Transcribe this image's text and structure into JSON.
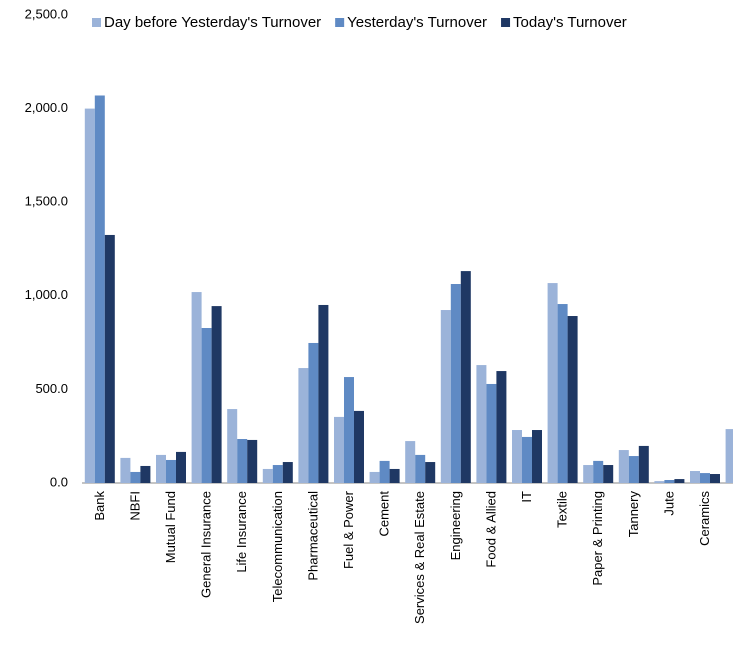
{
  "chart_data": {
    "type": "bar",
    "categories": [
      "Bank",
      "NBFI",
      "Mutual Fund",
      "General Insurance",
      "Life Insurance",
      "Telecommunication",
      "Pharmaceutical",
      "Fuel & Power",
      "Cement",
      "Services & Real Estate",
      "Engineering",
      "Food & Allied",
      "IT",
      "Textile",
      "Paper & Printing",
      "Tannery",
      "Jute",
      "Ceramics",
      null
    ],
    "series": [
      {
        "name": "Day before Yesterday's Turnover",
        "color": "#9bb3d9",
        "values": [
          2000,
          134,
          150,
          1020,
          395,
          75,
          614,
          353,
          59,
          224,
          924,
          630,
          283,
          1068,
          96,
          176,
          10,
          64,
          288
        ]
      },
      {
        "name": "Yesterday's Turnover",
        "color": "#5f8ac4",
        "values": [
          2070,
          59,
          123,
          828,
          235,
          96,
          748,
          566,
          118,
          150,
          1063,
          529,
          246,
          956,
          118,
          144,
          16,
          53,
          null
        ]
      },
      {
        "name": "Today's Turnover",
        "color": "#1f3864",
        "values": [
          1325,
          91,
          166,
          945,
          230,
          112,
          951,
          385,
          75,
          112,
          1132,
          598,
          283,
          892,
          96,
          198,
          21,
          48,
          null
        ]
      }
    ],
    "ylim": [
      0,
      2500
    ],
    "yticks": [
      {
        "value": 0,
        "label": "0.0"
      },
      {
        "value": 500,
        "label": "500.0"
      },
      {
        "value": 1000,
        "label": "1,000.0"
      },
      {
        "value": 1500,
        "label": "1,500.0"
      },
      {
        "value": 2000,
        "label": "2,000.0"
      },
      {
        "value": 2500,
        "label": "2,500.0"
      }
    ],
    "grid": false
  }
}
